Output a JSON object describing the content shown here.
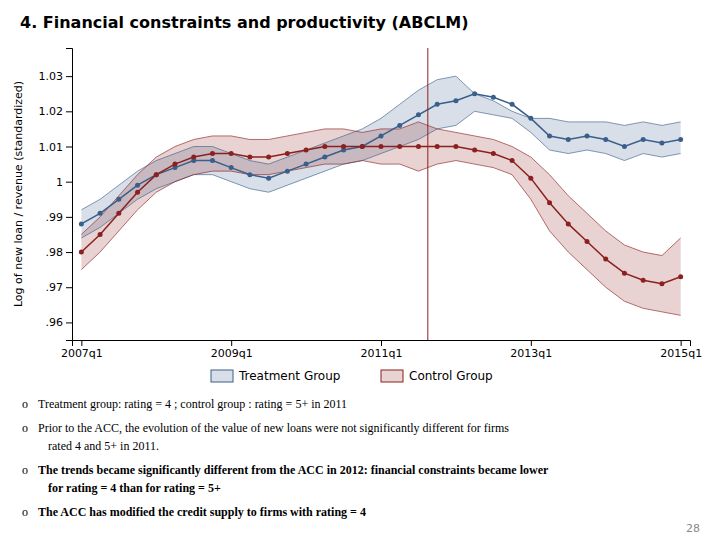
{
  "chart_data": {
    "type": "line",
    "title": "4. Financial constraints and productivity (ABCLM)",
    "y_label": "Log of new loan / revenue (standardized)",
    "categories": [
      "2007q1",
      null,
      null,
      null,
      null,
      null,
      null,
      null,
      "2009q1",
      null,
      null,
      null,
      null,
      null,
      null,
      null,
      "2011q1",
      null,
      null,
      null,
      null,
      null,
      null,
      null,
      "2013q1",
      null,
      null,
      null,
      null,
      null,
      null,
      null,
      "2015q1"
    ],
    "ylim": [
      0.955,
      1.038
    ],
    "yticks": [
      {
        "value": 0.96,
        "label": ".96"
      },
      {
        "value": 0.97,
        "label": ".97"
      },
      {
        "value": 0.98,
        "label": ".98"
      },
      {
        "value": 0.99,
        "label": ".99"
      },
      1,
      1.01,
      1.02,
      1.03
    ],
    "grid": false,
    "legend": "bottom",
    "series": [
      {
        "name": "Treatment Group",
        "color": "#3a5f8a",
        "marker": "circle",
        "values": [
          0.988,
          0.991,
          0.995,
          0.999,
          1.002,
          1.004,
          1.006,
          1.006,
          1.004,
          1.002,
          1.001,
          1.003,
          1.005,
          1.007,
          1.009,
          1.01,
          1.013,
          1.016,
          1.019,
          1.022,
          1.023,
          1.025,
          1.024,
          1.022,
          1.018,
          1.013,
          1.012,
          1.013,
          1.012,
          1.01,
          1.012,
          1.011,
          1.012
        ],
        "upper": [
          0.992,
          0.995,
          0.999,
          1.003,
          1.006,
          1.008,
          1.01,
          1.01,
          1.008,
          1.006,
          1.005,
          1.007,
          1.009,
          1.011,
          1.013,
          1.015,
          1.018,
          1.022,
          1.026,
          1.029,
          1.03,
          1.025,
          1.023,
          1.02,
          1.018,
          1.018,
          1.017,
          1.017,
          1.017,
          1.016,
          1.017,
          1.016,
          1.017
        ],
        "lower": [
          0.984,
          0.987,
          0.991,
          0.995,
          0.998,
          1.0,
          1.002,
          1.002,
          1.0,
          0.998,
          0.997,
          0.999,
          1.001,
          1.003,
          1.005,
          1.006,
          1.008,
          1.01,
          1.012,
          1.015,
          1.016,
          1.02,
          1.019,
          1.018,
          1.014,
          1.009,
          1.008,
          1.009,
          1.008,
          1.006,
          1.008,
          1.007,
          1.008
        ]
      },
      {
        "name": "Control Group",
        "color": "#8b2020",
        "marker": "circle",
        "values": [
          0.98,
          0.985,
          0.991,
          0.997,
          1.002,
          1.005,
          1.007,
          1.008,
          1.008,
          1.007,
          1.007,
          1.008,
          1.009,
          1.01,
          1.01,
          1.01,
          1.01,
          1.01,
          1.01,
          1.01,
          1.01,
          1.009,
          1.008,
          1.006,
          1.001,
          0.994,
          0.988,
          0.983,
          0.978,
          0.974,
          0.972,
          0.971,
          0.973
        ],
        "upper": [
          0.985,
          0.99,
          0.996,
          1.002,
          1.007,
          1.01,
          1.012,
          1.013,
          1.013,
          1.012,
          1.012,
          1.013,
          1.014,
          1.015,
          1.015,
          1.014,
          1.015,
          1.015,
          1.017,
          1.015,
          1.014,
          1.013,
          1.012,
          1.01,
          1.007,
          1.002,
          0.996,
          0.991,
          0.986,
          0.982,
          0.98,
          0.979,
          0.984
        ],
        "lower": [
          0.975,
          0.98,
          0.986,
          0.992,
          0.997,
          1.0,
          1.002,
          1.003,
          1.003,
          1.002,
          1.002,
          1.003,
          1.004,
          1.005,
          1.005,
          1.006,
          1.005,
          1.005,
          1.003,
          1.005,
          1.006,
          1.005,
          1.004,
          1.002,
          0.995,
          0.986,
          0.98,
          0.975,
          0.97,
          0.966,
          0.964,
          0.963,
          0.962
        ]
      }
    ],
    "vline": {
      "x": 18.5,
      "color": "#8b2020"
    },
    "annotations": [
      {
        "bullet": "o",
        "bold": false,
        "lines": [
          "Treatment group: rating = 4 ; control group : rating = 5+ in 2011"
        ]
      },
      {
        "bullet": "o",
        "bold": false,
        "lines": [
          "Prior to the ACC, the evolution of the value of new loans were not significantly different for firms",
          "rated 4 and 5+ in 2011."
        ]
      },
      {
        "bullet": "o",
        "bold": true,
        "lines": [
          "The trends became significantly different from the ACC in 2012: financial constraints became lower",
          "for rating = 4 than for rating = 5+"
        ]
      },
      {
        "bullet": "o",
        "bold": true,
        "lines": [
          "The ACC has modified the credit supply to firms with rating = 4"
        ]
      }
    ],
    "page_number": "28"
  }
}
